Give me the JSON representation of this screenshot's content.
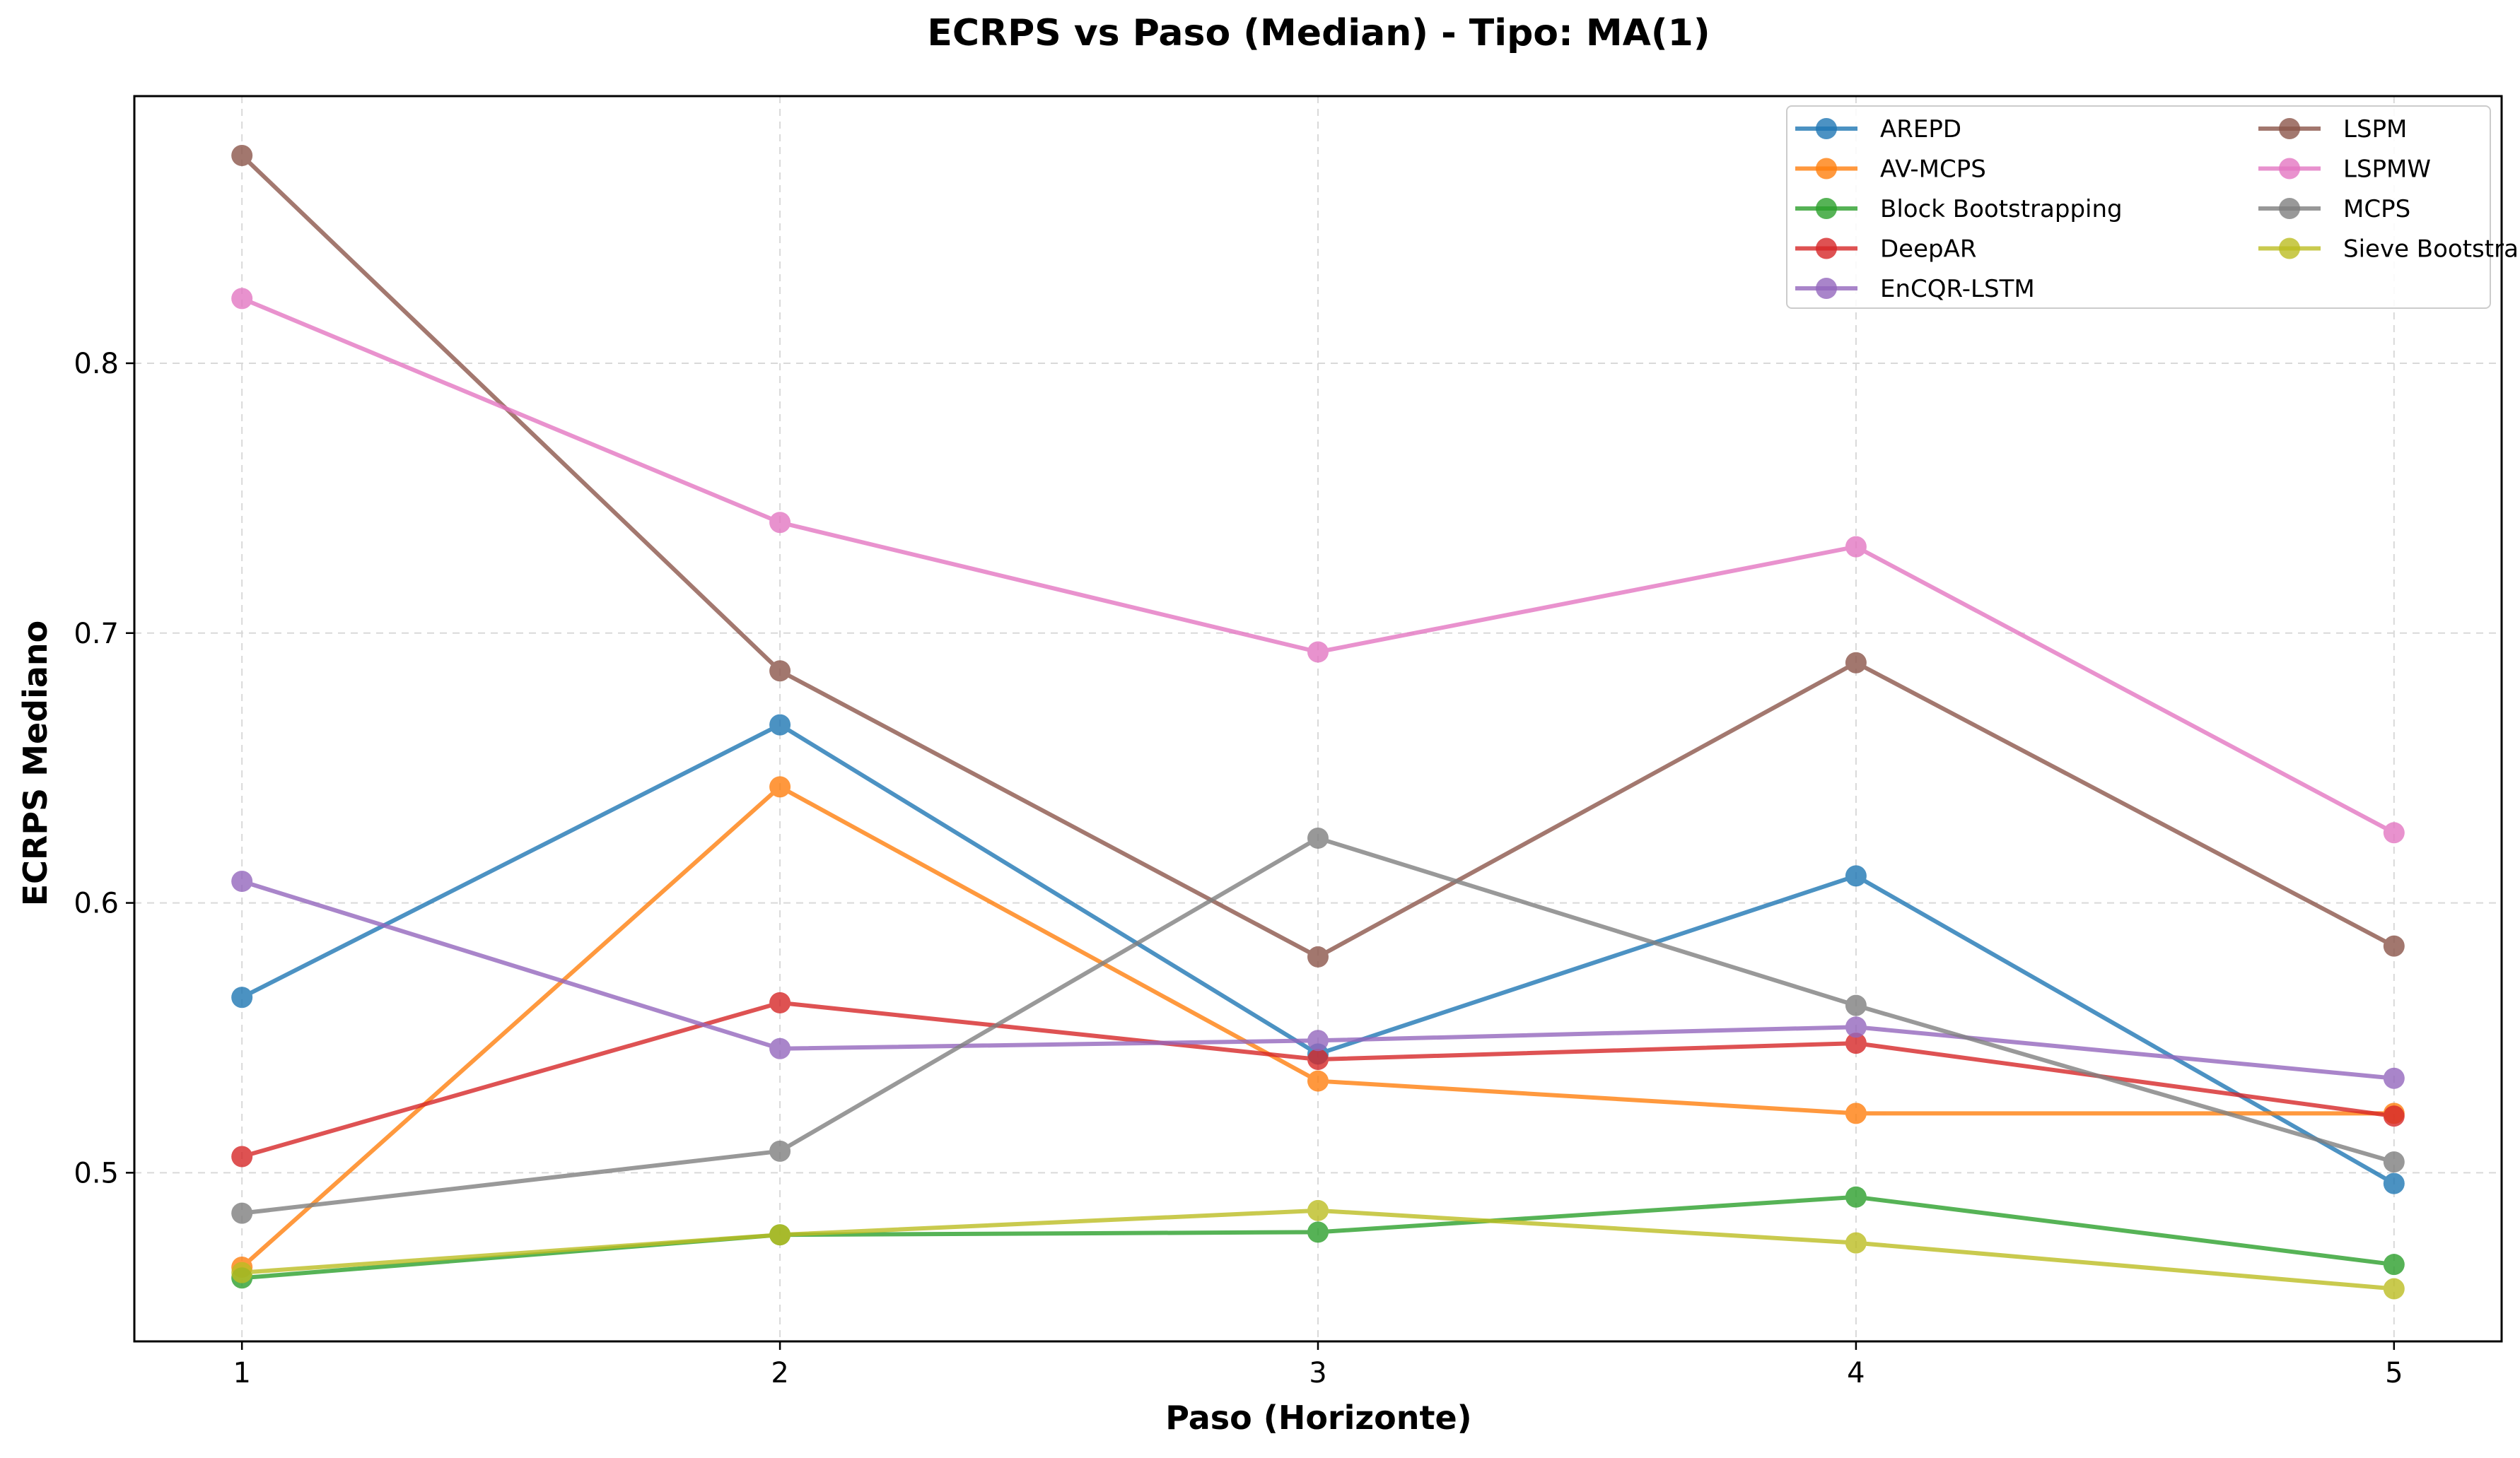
{
  "chart_data": {
    "type": "line",
    "title": "ECRPS vs Paso (Median) - Tipo: MA(1)",
    "xlabel": "Paso (Horizonte)",
    "ylabel": "ECRPS Mediano",
    "x": [
      1,
      2,
      3,
      4,
      5
    ],
    "x_tick_labels": [
      "1",
      "2",
      "3",
      "4",
      "5"
    ],
    "xlim": [
      0.8,
      5.2
    ],
    "y_ticks": [
      0.5,
      0.6,
      0.7,
      0.8
    ],
    "y_tick_labels": [
      "0.5",
      "0.6",
      "0.7",
      "0.8"
    ],
    "ylim": [
      0.4375,
      0.899
    ],
    "grid": true,
    "legend_position": "top-right",
    "legend_columns": 2,
    "series": [
      {
        "name": "AREPD",
        "color": "#1f77b4",
        "values": [
          0.565,
          0.666,
          0.544,
          0.61,
          0.496
        ]
      },
      {
        "name": "AV-MCPS",
        "color": "#ff7f0e",
        "values": [
          0.465,
          0.643,
          0.534,
          0.522,
          0.522
        ]
      },
      {
        "name": "Block Bootstrapping",
        "color": "#2ca02c",
        "values": [
          0.461,
          0.477,
          0.478,
          0.491,
          0.466
        ]
      },
      {
        "name": "DeepAR",
        "color": "#d62728",
        "values": [
          0.506,
          0.563,
          0.542,
          0.548,
          0.521
        ]
      },
      {
        "name": "EnCQR-LSTM",
        "color": "#9467bd",
        "values": [
          0.608,
          0.546,
          0.549,
          0.554,
          0.535
        ]
      },
      {
        "name": "LSPM",
        "color": "#8c564b",
        "values": [
          0.877,
          0.686,
          0.58,
          0.689,
          0.584
        ]
      },
      {
        "name": "LSPMW",
        "color": "#e377c2",
        "values": [
          0.824,
          0.741,
          0.693,
          0.732,
          0.626
        ]
      },
      {
        "name": "MCPS",
        "color": "#7f7f7f",
        "values": [
          0.485,
          0.508,
          0.624,
          0.562,
          0.504
        ]
      },
      {
        "name": "Sieve Bootstrap",
        "color": "#bcbd22",
        "values": [
          0.463,
          0.477,
          0.486,
          0.474,
          0.457
        ]
      }
    ]
  }
}
